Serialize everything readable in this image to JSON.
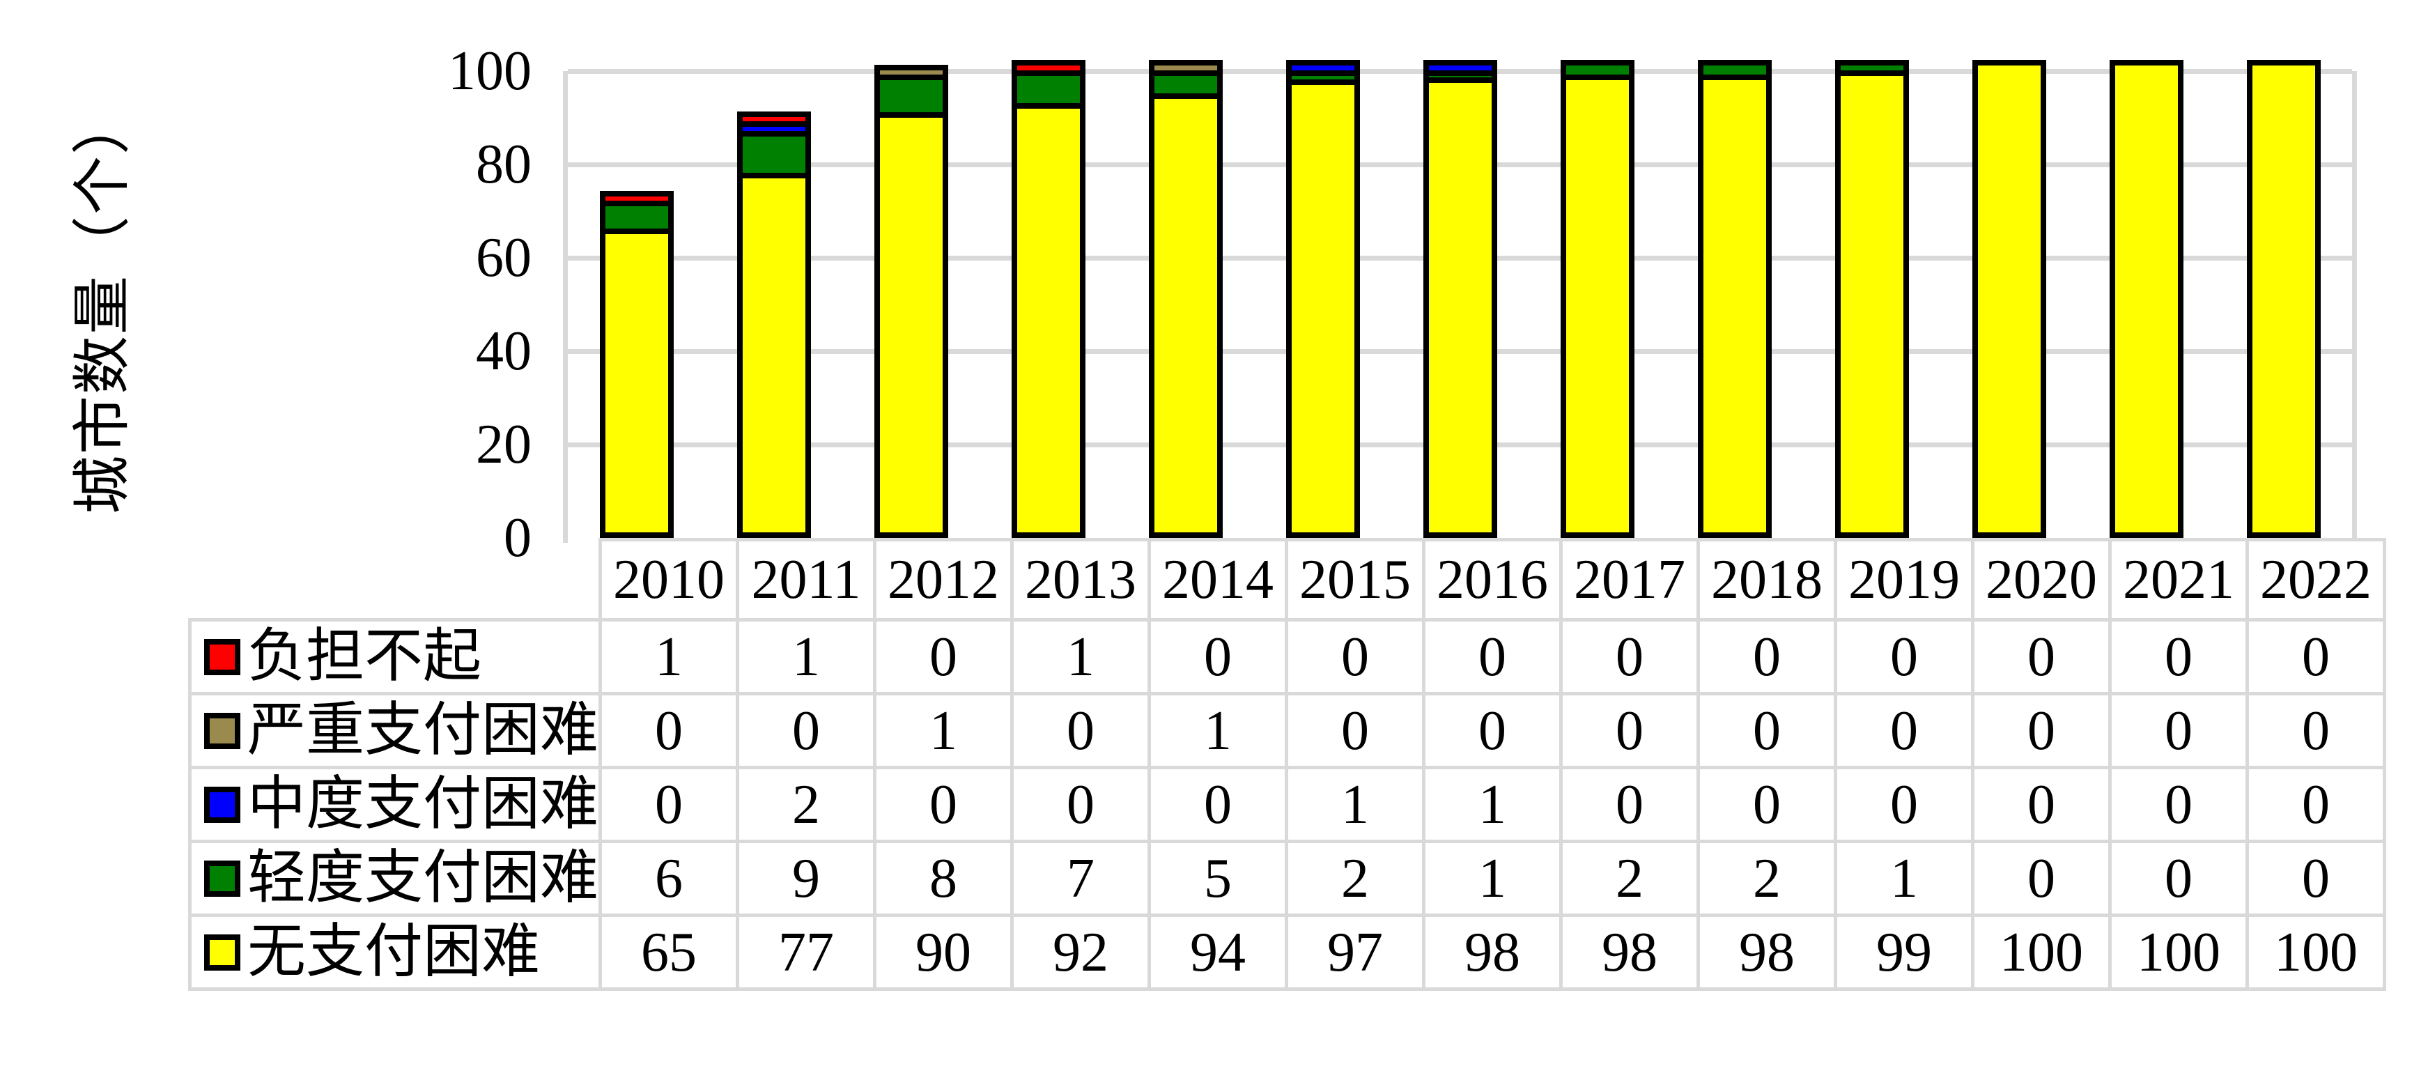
{
  "chart_data": {
    "type": "bar",
    "stacked": true,
    "orientation": "vertical",
    "title": "",
    "xlabel": "",
    "ylabel": "城市数量（个）",
    "ylim": [
      0,
      100
    ],
    "yticks": [
      0,
      20,
      40,
      60,
      80,
      100
    ],
    "grid": true,
    "gridline_color": "#d9d9d9",
    "bar_outline_color": "#000000",
    "legend_position": "table-rows-left",
    "categories": [
      "2010",
      "2011",
      "2012",
      "2013",
      "2014",
      "2015",
      "2016",
      "2017",
      "2018",
      "2019",
      "2020",
      "2021",
      "2022"
    ],
    "series": [
      {
        "name": "负担不起",
        "color": "#ff0000",
        "stack_order_from_top": 1,
        "values": [
          1,
          1,
          0,
          1,
          0,
          0,
          0,
          0,
          0,
          0,
          0,
          0,
          0
        ]
      },
      {
        "name": "严重支付困难",
        "color": "#9a8a4e",
        "stack_order_from_top": 2,
        "values": [
          0,
          0,
          1,
          0,
          1,
          0,
          0,
          0,
          0,
          0,
          0,
          0,
          0
        ]
      },
      {
        "name": "中度支付困难",
        "color": "#0000ff",
        "stack_order_from_top": 3,
        "values": [
          0,
          2,
          0,
          0,
          0,
          1,
          1,
          0,
          0,
          0,
          0,
          0,
          0
        ]
      },
      {
        "name": "轻度支付困难",
        "color": "#008000",
        "stack_order_from_top": 4,
        "values": [
          6,
          9,
          8,
          7,
          5,
          2,
          1,
          2,
          2,
          1,
          0,
          0,
          0
        ]
      },
      {
        "name": "无支付困难",
        "color": "#ffff00",
        "stack_order_from_top": 5,
        "values": [
          65,
          77,
          90,
          92,
          94,
          97,
          98,
          98,
          98,
          99,
          100,
          100,
          100
        ]
      }
    ]
  }
}
